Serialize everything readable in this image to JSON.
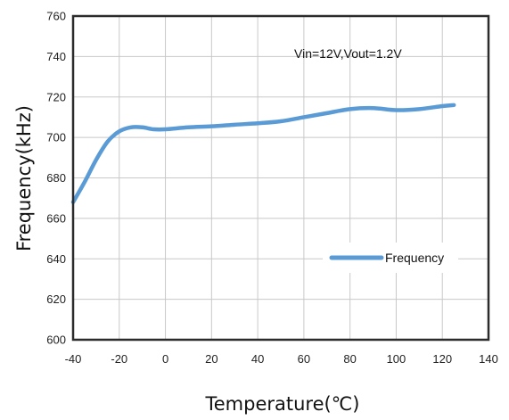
{
  "chart_data": {
    "type": "line",
    "xlabel": "Temperature(℃)",
    "ylabel": "Frequency(kHz)",
    "annotation": "Vin=12V,Vout=1.2V",
    "xlim": [
      -40,
      140
    ],
    "ylim": [
      600,
      760
    ],
    "xticks": [
      -40,
      -20,
      0,
      20,
      40,
      60,
      80,
      100,
      120,
      140
    ],
    "yticks": [
      600,
      620,
      640,
      660,
      680,
      700,
      720,
      740,
      760
    ],
    "grid": true,
    "legend_position": "lower-right",
    "series": [
      {
        "name": "Frequency",
        "color": "#5b9bd5",
        "x": [
          -40,
          -35,
          -30,
          -25,
          -20,
          -15,
          -10,
          -5,
          0,
          10,
          20,
          30,
          40,
          50,
          60,
          70,
          80,
          90,
          100,
          110,
          120,
          125
        ],
        "y": [
          668,
          678,
          689,
          698,
          703,
          705,
          705,
          704,
          704,
          705,
          705.5,
          706.3,
          707,
          708,
          710,
          712,
          714,
          714.5,
          713.5,
          714,
          715.5,
          716
        ]
      }
    ]
  },
  "colors": {
    "line": "#5b9bd5",
    "grid": "#c8c8c8",
    "frame": "#2b2b2b"
  }
}
